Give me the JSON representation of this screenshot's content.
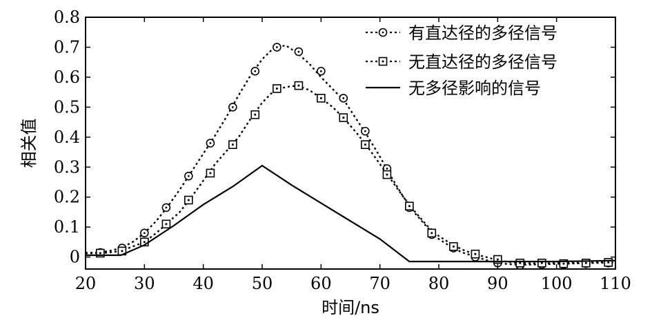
{
  "chart_data": {
    "type": "line",
    "title": "",
    "xlabel": "时间/ns",
    "ylabel": "相关值",
    "xlim": [
      20,
      110
    ],
    "ylim": [
      -0.04,
      0.8
    ],
    "xticks": [
      20,
      30,
      40,
      50,
      60,
      70,
      80,
      90,
      100,
      110
    ],
    "yticks": [
      0,
      0.1,
      0.2,
      0.3,
      0.4,
      0.5,
      0.6,
      0.7,
      0.8
    ],
    "ytick_labels": [
      "0",
      "0.1",
      "0.2",
      "0.3",
      "0.4",
      "0.5",
      "0.6",
      "0.7",
      "0.8"
    ],
    "grid": false,
    "legend_position": "top-right",
    "series": [
      {
        "name": "有直达径的多径信号",
        "line_style": "dotted",
        "marker": "circle",
        "color": "#000000",
        "curve": [
          [
            20,
            0.014
          ],
          [
            22,
            0.015
          ],
          [
            24,
            0.02
          ],
          [
            26,
            0.03
          ],
          [
            28,
            0.05
          ],
          [
            30,
            0.08
          ],
          [
            32,
            0.12
          ],
          [
            34,
            0.17
          ],
          [
            36,
            0.225
          ],
          [
            38,
            0.285
          ],
          [
            40,
            0.345
          ],
          [
            42,
            0.405
          ],
          [
            44,
            0.47
          ],
          [
            46,
            0.54
          ],
          [
            48,
            0.605
          ],
          [
            50,
            0.66
          ],
          [
            52,
            0.698
          ],
          [
            54,
            0.706
          ],
          [
            56,
            0.68
          ],
          [
            58,
            0.645
          ],
          [
            60,
            0.6
          ],
          [
            62,
            0.56
          ],
          [
            64,
            0.52
          ],
          [
            66,
            0.46
          ],
          [
            68,
            0.4
          ],
          [
            70,
            0.335
          ],
          [
            72,
            0.265
          ],
          [
            74,
            0.2
          ],
          [
            76,
            0.145
          ],
          [
            78,
            0.1
          ],
          [
            80,
            0.06
          ],
          [
            82,
            0.035
          ],
          [
            84,
            0.015
          ],
          [
            86,
            0.003
          ],
          [
            88,
            -0.01
          ],
          [
            90,
            -0.02
          ],
          [
            92,
            -0.024
          ],
          [
            94,
            -0.026
          ],
          [
            96,
            -0.025
          ],
          [
            98,
            -0.024
          ],
          [
            100,
            -0.023
          ],
          [
            102,
            -0.022
          ],
          [
            104,
            -0.021
          ],
          [
            106,
            -0.02
          ],
          [
            108,
            -0.019
          ],
          [
            110,
            -0.018
          ]
        ],
        "markers": [
          [
            22.5,
            0.015
          ],
          [
            26.2,
            0.03
          ],
          [
            30,
            0.08
          ],
          [
            33.7,
            0.165
          ],
          [
            37.5,
            0.27
          ],
          [
            41.2,
            0.38
          ],
          [
            45,
            0.5
          ],
          [
            48.8,
            0.62
          ],
          [
            52.5,
            0.7
          ],
          [
            56.2,
            0.685
          ],
          [
            60,
            0.62
          ],
          [
            63.8,
            0.53
          ],
          [
            67.5,
            0.42
          ],
          [
            71.2,
            0.295
          ],
          [
            75,
            0.165
          ],
          [
            78.8,
            0.075
          ],
          [
            82.5,
            0.03
          ],
          [
            86.2,
            0.0
          ],
          [
            90,
            -0.02
          ],
          [
            93.8,
            -0.028
          ],
          [
            97.5,
            -0.025
          ],
          [
            101.2,
            -0.025
          ],
          [
            105,
            -0.022
          ],
          [
            108.8,
            -0.02
          ]
        ]
      },
      {
        "name": "无直达径的多径信号",
        "line_style": "dotted",
        "marker": "square",
        "color": "#000000",
        "curve": [
          [
            20,
            0.012
          ],
          [
            22,
            0.013
          ],
          [
            24,
            0.015
          ],
          [
            26,
            0.02
          ],
          [
            28,
            0.035
          ],
          [
            30,
            0.05
          ],
          [
            32,
            0.08
          ],
          [
            34,
            0.115
          ],
          [
            36,
            0.15
          ],
          [
            38,
            0.2
          ],
          [
            40,
            0.255
          ],
          [
            42,
            0.31
          ],
          [
            44,
            0.355
          ],
          [
            46,
            0.4
          ],
          [
            48,
            0.46
          ],
          [
            50,
            0.515
          ],
          [
            52,
            0.555
          ],
          [
            54,
            0.567
          ],
          [
            56,
            0.572
          ],
          [
            58,
            0.557
          ],
          [
            60,
            0.53
          ],
          [
            62,
            0.5
          ],
          [
            64,
            0.46
          ],
          [
            66,
            0.415
          ],
          [
            68,
            0.365
          ],
          [
            70,
            0.31
          ],
          [
            72,
            0.255
          ],
          [
            74,
            0.2
          ],
          [
            76,
            0.15
          ],
          [
            78,
            0.105
          ],
          [
            80,
            0.07
          ],
          [
            82,
            0.045
          ],
          [
            84,
            0.025
          ],
          [
            86,
            0.01
          ],
          [
            88,
            0.0
          ],
          [
            90,
            -0.01
          ],
          [
            92,
            -0.017
          ],
          [
            94,
            -0.02
          ],
          [
            96,
            -0.021
          ],
          [
            98,
            -0.021
          ],
          [
            100,
            -0.02
          ],
          [
            102,
            -0.02
          ],
          [
            104,
            -0.019
          ],
          [
            106,
            -0.018
          ],
          [
            108,
            -0.017
          ],
          [
            110,
            -0.016
          ]
        ],
        "markers": [
          [
            22.5,
            0.013
          ],
          [
            26.2,
            0.02
          ],
          [
            30,
            0.05
          ],
          [
            33.7,
            0.11
          ],
          [
            37.5,
            0.19
          ],
          [
            41.2,
            0.28
          ],
          [
            45,
            0.375
          ],
          [
            48.8,
            0.475
          ],
          [
            52.5,
            0.562
          ],
          [
            56.2,
            0.572
          ],
          [
            60,
            0.53
          ],
          [
            63.8,
            0.465
          ],
          [
            67.5,
            0.375
          ],
          [
            71.2,
            0.275
          ],
          [
            75,
            0.17
          ],
          [
            78.8,
            0.08
          ],
          [
            82.5,
            0.035
          ],
          [
            86.2,
            0.01
          ],
          [
            90,
            -0.008
          ],
          [
            93.8,
            -0.02
          ],
          [
            97.5,
            -0.02
          ],
          [
            101.2,
            -0.022
          ],
          [
            105,
            -0.02
          ],
          [
            108.8,
            -0.018
          ]
        ]
      },
      {
        "name": "无多径影响的信号",
        "line_style": "solid",
        "marker": "none",
        "color": "#000000",
        "curve": [
          [
            20,
            0.006
          ],
          [
            26,
            0.006
          ],
          [
            30,
            0.04
          ],
          [
            35,
            0.105
          ],
          [
            40,
            0.175
          ],
          [
            45,
            0.235
          ],
          [
            50,
            0.305
          ],
          [
            55,
            0.24
          ],
          [
            60,
            0.18
          ],
          [
            65,
            0.12
          ],
          [
            70,
            0.06
          ],
          [
            75,
            -0.015
          ],
          [
            80,
            -0.015
          ],
          [
            90,
            -0.015
          ],
          [
            100,
            -0.015
          ],
          [
            110,
            -0.012
          ]
        ]
      }
    ]
  }
}
